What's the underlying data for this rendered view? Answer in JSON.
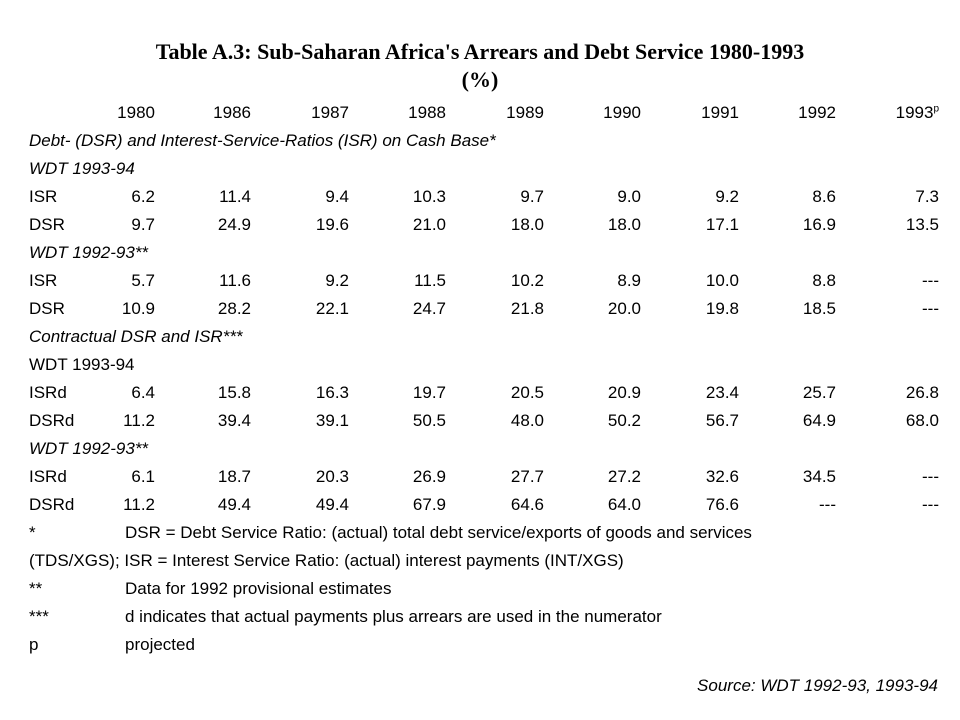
{
  "title": {
    "line1": "Table A.3: Sub-Saharan Africa's Arrears and Debt Service 1980-1993",
    "line2": "(%)"
  },
  "table": {
    "years": [
      "1980",
      "1986",
      "1987",
      "1988",
      "1989",
      "1990",
      "1991",
      "1992",
      "1993"
    ],
    "last_year_superscript": "p",
    "section1_heading": "Debt- (DSR) and Interest-Service-Ratios (ISR) on Cash Base*",
    "wdt_9394_italic": "WDT 1993-94",
    "wdt_9293_italic": "WDT 1992-93**",
    "section2_heading": "Contractual DSR and ISR***",
    "wdt_9394_plain": "WDT 1993-94",
    "rows": [
      {
        "label": "ISR",
        "values": [
          "6.2",
          "11.4",
          "9.4",
          "10.3",
          "9.7",
          "9.0",
          "9.2",
          "8.6",
          "7.3"
        ]
      },
      {
        "label": "DSR",
        "values": [
          "9.7",
          "24.9",
          "19.6",
          "21.0",
          "18.0",
          "18.0",
          "17.1",
          "16.9",
          "13.5"
        ]
      },
      {
        "label": "ISR",
        "values": [
          "5.7",
          "11.6",
          "9.2",
          "11.5",
          "10.2",
          "8.9",
          "10.0",
          "8.8",
          "---"
        ]
      },
      {
        "label": "DSR",
        "values": [
          "10.9",
          "28.2",
          "22.1",
          "24.7",
          "21.8",
          "20.0",
          "19.8",
          "18.5",
          "---"
        ]
      },
      {
        "label": "ISRd",
        "values": [
          "6.4",
          "15.8",
          "16.3",
          "19.7",
          "20.5",
          "20.9",
          "23.4",
          "25.7",
          "26.8"
        ]
      },
      {
        "label": "DSRd",
        "values": [
          "11.2",
          "39.4",
          "39.1",
          "50.5",
          "48.0",
          "50.2",
          "56.7",
          "64.9",
          "68.0"
        ]
      },
      {
        "label": "ISRd",
        "values": [
          "6.1",
          "18.7",
          "20.3",
          "26.9",
          "27.7",
          "27.2",
          "32.6",
          "34.5",
          "---"
        ]
      },
      {
        "label": "DSRd",
        "values": [
          "11.2",
          "49.4",
          "49.4",
          "67.9",
          "64.6",
          "64.0",
          "76.6",
          "---",
          "---"
        ]
      }
    ]
  },
  "notes": [
    {
      "symbol": "*",
      "text": "DSR = Debt Service Ratio: (actual) total debt service/exports of goods and services"
    },
    {
      "symbol": "",
      "text": "(TDS/XGS); ISR = Interest Service Ratio: (actual) interest payments (INT/XGS)"
    },
    {
      "symbol": "**",
      "text": "Data for 1992 provisional estimates"
    },
    {
      "symbol": "***",
      "text": "d indicates that actual payments plus arrears are used in the numerator"
    },
    {
      "symbol": "p",
      "text": "projected"
    }
  ],
  "source": "Source: WDT 1992-93, 1993-94"
}
